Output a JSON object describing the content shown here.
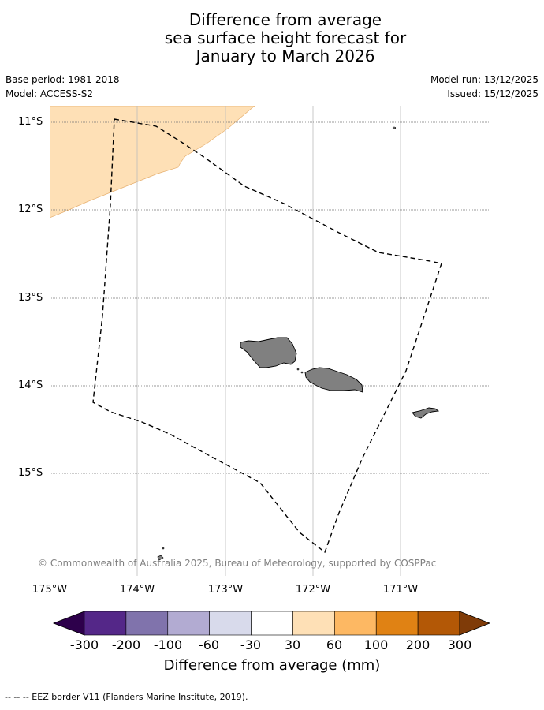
{
  "title": {
    "line1": "Difference from average",
    "line2": "sea surface height forecast for",
    "line3": "January to March 2026"
  },
  "meta": {
    "base_period": "Base period: 1981-2018",
    "model": "Model: ACCESS-S2",
    "model_run": "Model run: 13/12/2025",
    "issued": "Issued: 15/12/2025"
  },
  "map": {
    "lat_labels": [
      "11°S",
      "12°S",
      "13°S",
      "14°S",
      "15°S"
    ],
    "lon_labels": [
      "175°W",
      "174°W",
      "173°W",
      "172°W",
      "171°W"
    ],
    "land_color": "#808080",
    "anomaly_fill_color": "#fee0b6",
    "copyright": "© Commonwealth of Australia 2025, Bureau of Meteorology, supported by COSPPac"
  },
  "colorbar": {
    "labels": [
      "-300",
      "-200",
      "-100",
      "-60",
      "-30",
      "30",
      "60",
      "100",
      "200",
      "300"
    ],
    "colors": [
      "#542788",
      "#8073ac",
      "#b2abd2",
      "#d8daeb",
      "#ffffff",
      "#fee0b6",
      "#fdb863",
      "#e08214",
      "#b35806"
    ],
    "low_extend_color": "#2d004b",
    "high_extend_color": "#7f3b08",
    "title": "Difference from average (mm)"
  },
  "footnote": "--  --  -- EEZ border V11 (Flanders Marine Institute, 2019)."
}
